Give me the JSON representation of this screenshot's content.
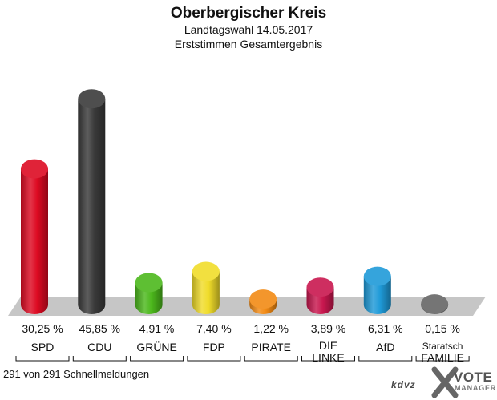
{
  "header": {
    "title": "Oberbergischer Kreis",
    "subtitle": "Landtagswahl 14.05.2017",
    "subtitle2": "Erststimmen Gesamtergebnis"
  },
  "footer": {
    "status": "291 von 291 Schnellmeldungen",
    "logo_text": "kdvz",
    "vote_text": "VOTE",
    "manager_text": "MANAGER"
  },
  "chart_data": {
    "type": "bar",
    "title": "Oberbergischer Kreis",
    "ylim": [
      0,
      50
    ],
    "categories": [
      "SPD",
      "CDU",
      "GRÜNE",
      "FDP",
      "PIRATE",
      "DIE LINKE",
      "AfD",
      "Staratsch FAMILIE"
    ],
    "label_lines": [
      [
        "SPD"
      ],
      [
        "CDU"
      ],
      [
        "GRÜNE"
      ],
      [
        "FDP"
      ],
      [
        "PIRATE"
      ],
      [
        "DIE",
        "LINKE"
      ],
      [
        "AfD"
      ],
      [
        "Staratsch",
        "FAMILIE"
      ]
    ],
    "values": [
      30.25,
      45.85,
      4.91,
      7.4,
      1.22,
      3.89,
      6.31,
      0.15
    ],
    "value_labels": [
      "30,25 %",
      "45,85 %",
      "4,91 %",
      "7,40 %",
      "1,22 %",
      "3,89 %",
      "6,31 %",
      "0,15 %"
    ],
    "colors": [
      "#dd0a22",
      "#3a3a3a",
      "#4cb81c",
      "#f0dc2a",
      "#f28a14",
      "#c8174e",
      "#1f9ad8",
      "#666666"
    ]
  }
}
